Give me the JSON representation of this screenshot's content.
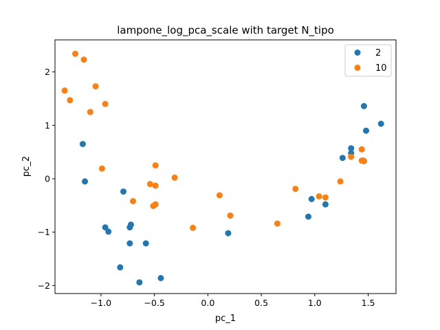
{
  "chart_data": {
    "type": "scatter",
    "title": "lampone_log_pca_scale with target N_tipo",
    "xlabel": "pc_1",
    "ylabel": "pc_2",
    "xlim": [
      -1.43,
      1.76
    ],
    "ylim": [
      -2.15,
      2.6
    ],
    "xticks": [
      -1.0,
      -0.5,
      0.0,
      0.5,
      1.0,
      1.5
    ],
    "xtick_labels": [
      "−1.0",
      "−0.5",
      "0.0",
      "0.5",
      "1.0",
      "1.5"
    ],
    "yticks": [
      -2,
      -1,
      0,
      1,
      2
    ],
    "ytick_labels": [
      "−2",
      "−1",
      "0",
      "1",
      "2"
    ],
    "grid": false,
    "legend_position": "top-right",
    "series": [
      {
        "name": "2",
        "color": "#1f77b4",
        "points": [
          [
            -1.17,
            0.65
          ],
          [
            -1.15,
            -0.05
          ],
          [
            -0.79,
            -0.24
          ],
          [
            -0.96,
            -0.91
          ],
          [
            -0.93,
            -0.99
          ],
          [
            -0.73,
            -0.91
          ],
          [
            -0.72,
            -0.86
          ],
          [
            -0.73,
            -1.21
          ],
          [
            -0.58,
            -1.21
          ],
          [
            -0.82,
            -1.66
          ],
          [
            -0.64,
            -1.94
          ],
          [
            -0.44,
            -1.86
          ],
          [
            0.19,
            -1.02
          ],
          [
            0.94,
            -0.71
          ],
          [
            0.97,
            -0.38
          ],
          [
            1.1,
            -0.48
          ],
          [
            1.26,
            0.39
          ],
          [
            1.34,
            0.48
          ],
          [
            1.34,
            0.57
          ],
          [
            1.46,
            1.36
          ],
          [
            1.48,
            0.9
          ],
          [
            1.62,
            1.03
          ],
          [
            1.45,
            0.34
          ],
          [
            1.46,
            0.33
          ]
        ]
      },
      {
        "name": "10",
        "color": "#ff7f0e",
        "points": [
          [
            -1.24,
            2.34
          ],
          [
            -1.16,
            2.23
          ],
          [
            -1.05,
            1.73
          ],
          [
            -0.96,
            1.4
          ],
          [
            -1.1,
            1.25
          ],
          [
            -1.34,
            1.65
          ],
          [
            -1.29,
            1.47
          ],
          [
            -0.99,
            0.19
          ],
          [
            -0.49,
            0.25
          ],
          [
            -0.31,
            0.02
          ],
          [
            -0.54,
            -0.1
          ],
          [
            -0.49,
            -0.13
          ],
          [
            -0.7,
            -0.42
          ],
          [
            -0.51,
            -0.51
          ],
          [
            -0.49,
            -0.48
          ],
          [
            -0.14,
            -0.92
          ],
          [
            0.11,
            -0.31
          ],
          [
            0.21,
            -0.69
          ],
          [
            0.65,
            -0.84
          ],
          [
            0.82,
            -0.19
          ],
          [
            1.04,
            -0.33
          ],
          [
            1.1,
            -0.35
          ],
          [
            1.24,
            -0.05
          ],
          [
            1.34,
            0.41
          ],
          [
            1.44,
            0.55
          ],
          [
            1.44,
            0.34
          ],
          [
            1.46,
            0.33
          ]
        ]
      }
    ]
  }
}
